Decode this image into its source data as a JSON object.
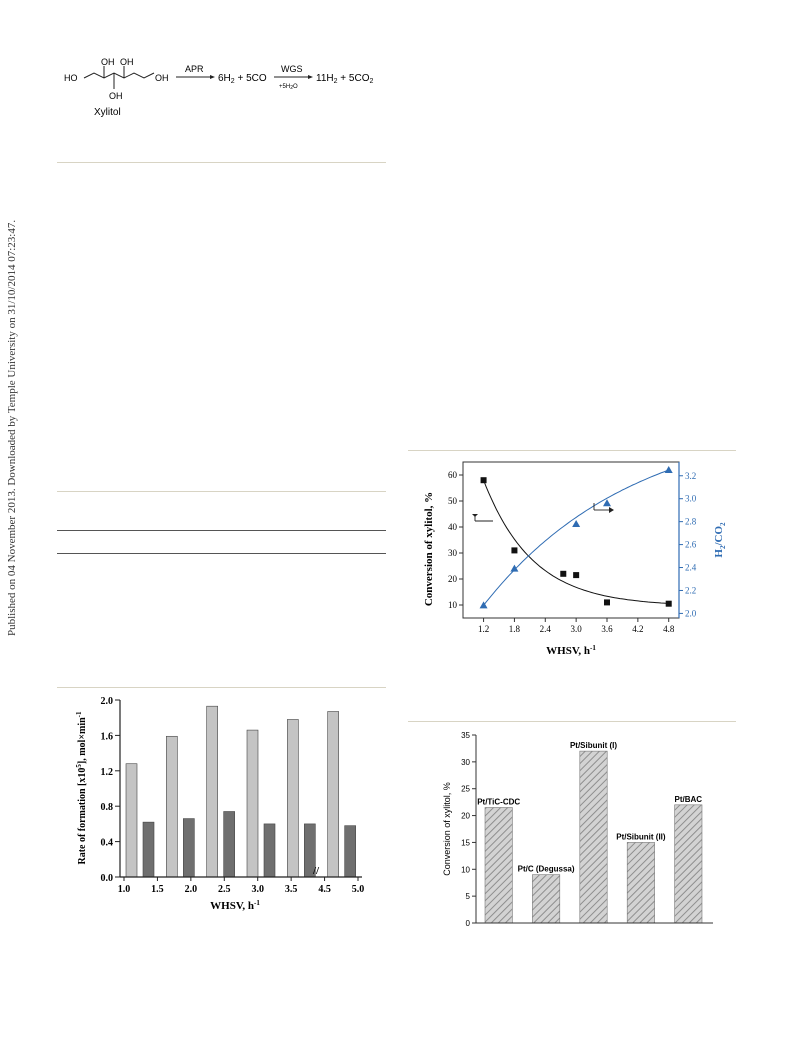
{
  "side_note": "Published on 04 November 2013. Downloaded by Temple University on 31/10/2014 07:23:47.",
  "scheme": {
    "oh_label": "OH",
    "ho_label": "HO",
    "compound_name": "Xylitol",
    "arrow1_label": "APR",
    "product1a": "6H",
    "product1b": "2",
    "product1c": " + 5CO",
    "arrow2_label": "WGS",
    "arrow2_sub": "+5H",
    "arrow2_sub2": "2",
    "arrow2_sub3": "O",
    "product2a": "11H",
    "product2b": "2",
    "product2c": " + 5CO",
    "product2d": "2"
  },
  "chart_data": [
    {
      "type": "scatter",
      "id": "conversion_h2co2_vs_whsv",
      "xlabel": "WHSV, h",
      "xlabel_sup": "-1",
      "ylabel": "Conversion of xylitol, %",
      "y2label": "H",
      "y2label_sub": "2",
      "y2label_tail": "/CO",
      "y2label_sub2": "2",
      "xlim": [
        0.8,
        5.0
      ],
      "ylim": [
        5,
        65
      ],
      "y2lim": [
        1.96,
        3.32
      ],
      "x_ticks": [
        "1.2",
        "1.8",
        "2.4",
        "3.0",
        "3.6",
        "4.2",
        "4.8"
      ],
      "y_ticks": [
        "10",
        "20",
        "30",
        "40",
        "50",
        "60"
      ],
      "y2_ticks": [
        "2.0",
        "2.2",
        "2.4",
        "2.6",
        "2.8",
        "3.0",
        "3.2"
      ],
      "series": [
        {
          "axis": "left",
          "marker": "square",
          "color": "#111111",
          "x": [
            1.2,
            1.8,
            2.75,
            3.0,
            3.6,
            4.8
          ],
          "y": [
            58,
            31,
            22,
            21.5,
            11,
            10.5
          ]
        },
        {
          "axis": "right",
          "marker": "triangle",
          "color": "#2f6cb3",
          "x": [
            1.2,
            1.8,
            3.0,
            3.6,
            4.8
          ],
          "y": [
            2.07,
            2.39,
            2.78,
            2.96,
            3.25
          ]
        }
      ]
    },
    {
      "type": "bar",
      "id": "rate_of_formation_vs_whsv",
      "xlabel": "WHSV, h",
      "xlabel_sup": "-1",
      "ylabel": "Rate of formation [x10",
      "ylabel_sup": "5",
      "ylabel_tail": "], mol×min",
      "ylabel_sup2": "-1",
      "ylim": [
        0.0,
        2.0
      ],
      "y_ticks": [
        "0.0",
        "0.4",
        "0.8",
        "1.2",
        "1.6",
        "2.0"
      ],
      "x_ticks": [
        "1.0",
        "1.5",
        "2.0",
        "2.5",
        "3.0",
        "3.5",
        "4.5",
        "5.0"
      ],
      "axis_break": "//",
      "series": [
        {
          "color": "#c4c4c4",
          "values": [
            1.28,
            1.59,
            1.93,
            1.66,
            1.78,
            1.87
          ]
        },
        {
          "color": "#6f6f6f",
          "values": [
            0.62,
            0.66,
            0.74,
            0.6,
            0.6,
            0.58
          ]
        }
      ]
    },
    {
      "type": "bar",
      "id": "conversion_by_catalyst",
      "ylabel": "Conversion of xylitol, %",
      "ylim": [
        0,
        35
      ],
      "y_ticks": [
        "0",
        "5",
        "10",
        "15",
        "20",
        "25",
        "30",
        "35"
      ],
      "categories": [
        "Pt/TiC-CDC",
        "Pt/C (Degussa)",
        "Pt/Sibunit (I)",
        "Pt/Sibunit (II)",
        "Pt/BAC"
      ],
      "values": [
        21.5,
        9,
        32,
        15,
        22
      ]
    }
  ]
}
